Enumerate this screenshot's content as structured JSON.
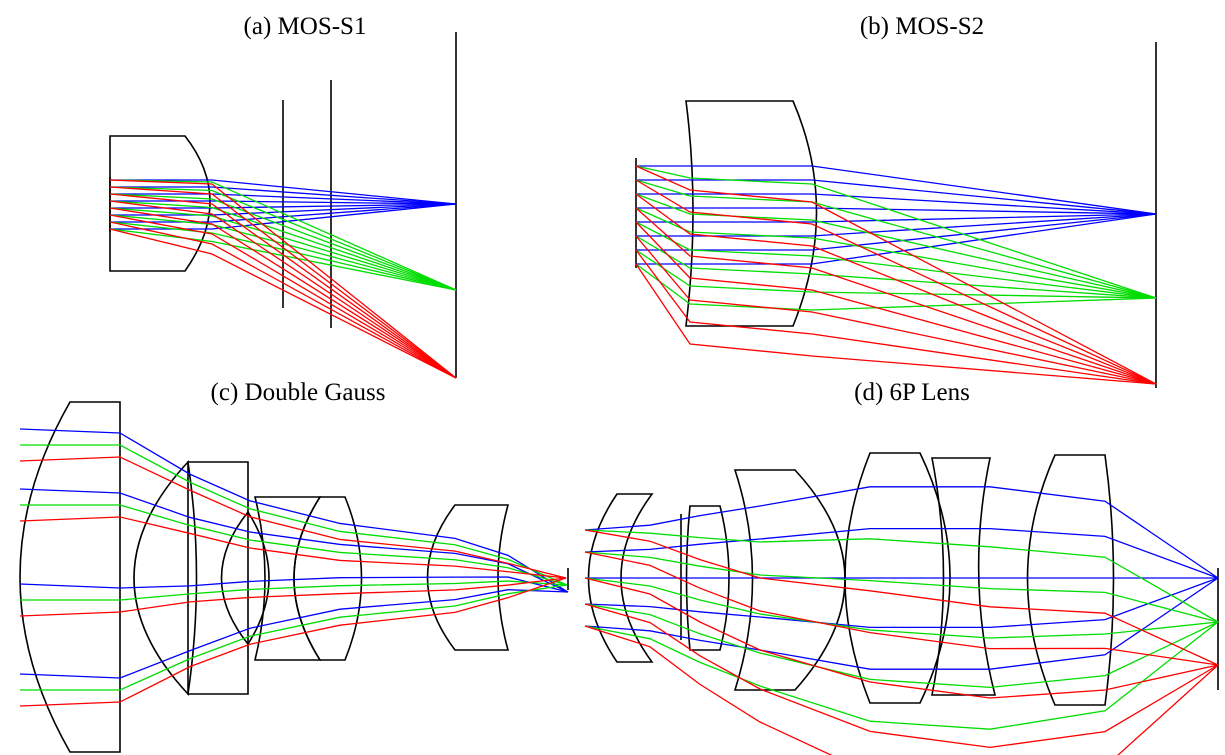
{
  "figure": {
    "panels": [
      {
        "id": "a",
        "title": "(a) MOS-S1"
      },
      {
        "id": "b",
        "title": "(b) MOS-S2"
      },
      {
        "id": "c",
        "title": "(c) Double Gauss"
      },
      {
        "id": "d",
        "title": "(d) 6P Lens"
      }
    ]
  },
  "colors": {
    "outline": "#000000",
    "ray_field_0": "#0000ff",
    "ray_field_1": "#00dd00",
    "ray_field_2": "#ff0000"
  }
}
